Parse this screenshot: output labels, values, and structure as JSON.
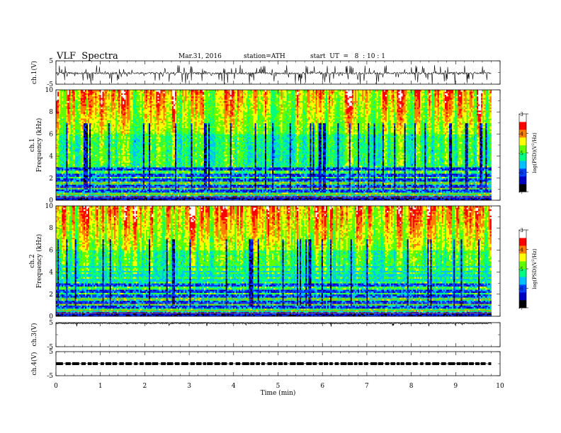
{
  "header": {
    "title": "VLF  Spectra",
    "date": "Mar.31, 2016",
    "station": "station=ATH",
    "start": "start  UT  =   8  : 10 : 1"
  },
  "chart_data": [
    {
      "type": "line",
      "panel": "ch1-waveform",
      "ylabel": "ch.1(V)",
      "ylim": [
        -5,
        5
      ],
      "yticks": [
        "5",
        "-5"
      ],
      "xlim": [
        0,
        10
      ],
      "data_extent_min": [
        0,
        9.8
      ],
      "mean_level_v": -0.3,
      "color": "#000000"
    },
    {
      "type": "heatmap",
      "panel": "ch1-spectrogram",
      "ylabel": "ch.1\nFrequency  (kHz)",
      "ylabel_lines": [
        "ch.1",
        "Frequency  (kHz)"
      ],
      "ylim": [
        0,
        10
      ],
      "yticks": [
        "0",
        "2",
        "4",
        "6",
        "8",
        "10"
      ],
      "xlim": [
        0,
        10
      ],
      "data_extent_min": [
        0,
        9.8
      ],
      "colorbar": {
        "label": "log(PSD)(V²/Hz)",
        "label_lines": [
          "log(PSD)(V",
          "2",
          "/Hz)"
        ],
        "range": [
          -7,
          -3
        ],
        "ticks": [
          "-3",
          "-4",
          "-5",
          "-6",
          "-7"
        ]
      }
    },
    {
      "type": "heatmap",
      "panel": "ch2-spectrogram",
      "ylabel": "ch.2\nFrequency  (kHz)",
      "ylabel_lines": [
        "ch.2",
        "Frequency  (kHz)"
      ],
      "ylim": [
        0,
        10
      ],
      "yticks": [
        "0",
        "2",
        "4",
        "6",
        "8",
        "10"
      ],
      "xlim": [
        0,
        10
      ],
      "data_extent_min": [
        0,
        9.8
      ],
      "colorbar": {
        "label": "log(PSD)(V²/Hz)",
        "label_lines": [
          "log(PSD)(V",
          "2",
          "/Hz)"
        ],
        "range": [
          -7,
          -3
        ],
        "ticks": [
          "-3",
          "-4",
          "-5",
          "-6",
          "-7"
        ]
      }
    },
    {
      "type": "line",
      "panel": "ch3-waveform",
      "ylabel": "ch.3(V)",
      "ylim": [
        -5,
        5
      ],
      "yticks": [
        "5",
        "-5"
      ],
      "xlim": [
        0,
        10
      ],
      "data_extent_min": [
        0,
        9.8
      ],
      "mean_level_v": 4.7,
      "color": "#000000"
    },
    {
      "type": "line",
      "panel": "ch4-waveform",
      "ylabel": "ch.4(V)",
      "ylim": [
        -5,
        5
      ],
      "yticks": [
        "5",
        "-5"
      ],
      "xlim": [
        0,
        10
      ],
      "data_extent_min": [
        0,
        9.8
      ],
      "mean_level_v": 0.0,
      "color": "#000000"
    }
  ],
  "xaxis": {
    "label": "Time  (min)",
    "ticks": [
      "0",
      "1",
      "2",
      "3",
      "4",
      "5",
      "6",
      "7",
      "8",
      "9",
      "10"
    ]
  },
  "colormap": [
    "#000000",
    "#0000c0",
    "#0040ff",
    "#00c0ff",
    "#00ff80",
    "#60ff00",
    "#ffff00",
    "#ff8000",
    "#ff0000",
    "#ffffff"
  ]
}
